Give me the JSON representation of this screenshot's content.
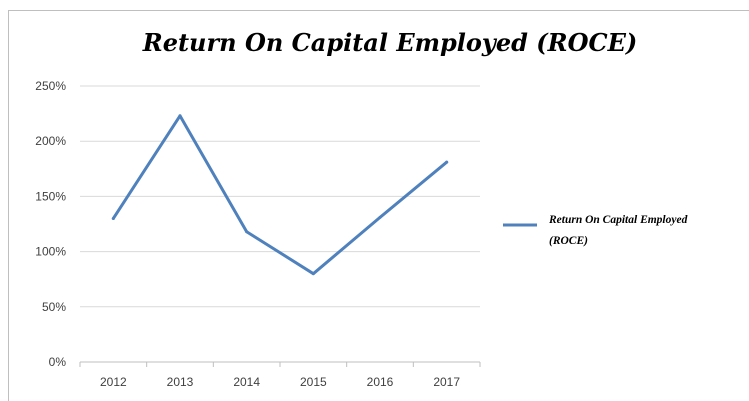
{
  "chart_data": {
    "type": "line",
    "title": "Return On Capital Employed (ROCE)",
    "xlabel": "",
    "ylabel": "",
    "categories": [
      "2012",
      "2013",
      "2014",
      "2015",
      "2016",
      "2017"
    ],
    "series": [
      {
        "name": "Return On Capital Employed (ROCE)",
        "values": [
          130,
          223,
          118,
          80,
          131,
          181
        ],
        "color": "#4f81bd"
      }
    ],
    "ylim": [
      0,
      250
    ],
    "yticks": [
      0,
      50,
      100,
      150,
      200,
      250
    ],
    "ytick_labels": [
      "0%",
      "50%",
      "100%",
      "150%",
      "200%",
      "250%"
    ],
    "grid": true,
    "legend_position": "right",
    "legend_lines": [
      "Return On Capital Employed",
      "(ROCE)"
    ]
  }
}
